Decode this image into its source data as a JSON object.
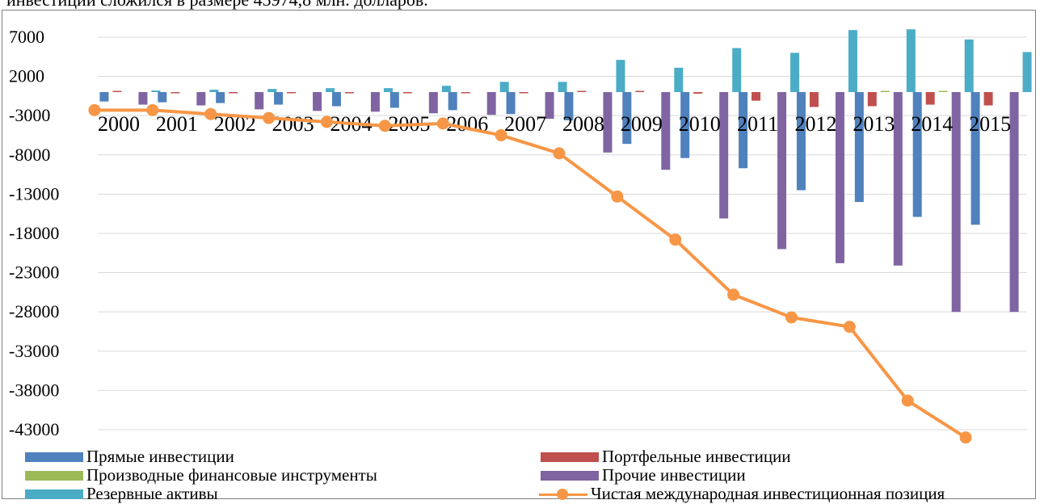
{
  "caption": "инвестиции сложился в размере 43974,8 млн. долларов.",
  "chart_data": {
    "type": "bar",
    "title": "",
    "xlabel": "",
    "ylabel": "",
    "categories": [
      "2000",
      "2001",
      "2002",
      "2003",
      "2004",
      "2005",
      "2006",
      "2007",
      "2008",
      "2009",
      "2010",
      "2011",
      "2012",
      "2013",
      "2014",
      "2015"
    ],
    "ylim": [
      -43000,
      9000
    ],
    "yticks": [
      7000,
      2000,
      -3000,
      -8000,
      -13000,
      -18000,
      -23000,
      -28000,
      -33000,
      -38000,
      -43000
    ],
    "yticklabels": [
      "7000",
      "2000",
      "-3000",
      "-8000",
      "-13000",
      "-18000",
      "-23000",
      "-28000",
      "-33000",
      "-38000",
      "-43000"
    ],
    "grid": true,
    "legend_position": "bottom",
    "series": [
      {
        "name": "Прямые инвестиции",
        "type": "bar",
        "color": "#4f81bd",
        "values": [
          -1200,
          -1300,
          -1400,
          -1600,
          -1800,
          -2000,
          -2300,
          -2800,
          -3600,
          -6600,
          -8400,
          -9700,
          -12500,
          -14000,
          -15900,
          -16900
        ]
      },
      {
        "name": "Портфельные инвестиции",
        "type": "bar",
        "color": "#c0504d",
        "values": [
          100,
          -100,
          -100,
          -100,
          -100,
          -100,
          -100,
          -100,
          100,
          100,
          -200,
          -1100,
          -1900,
          -1800,
          -1600,
          -1700
        ]
      },
      {
        "name": "Производные финансовые инструменты",
        "type": "bar",
        "color": "#9bbb59",
        "values": [
          0,
          0,
          0,
          0,
          0,
          0,
          0,
          0,
          0,
          0,
          0,
          0,
          0,
          100,
          100,
          0
        ]
      },
      {
        "name": "Прочие инвестиции",
        "type": "bar",
        "color": "#8064a2",
        "values": [
          -1600,
          -1700,
          -2200,
          -2400,
          -2500,
          -2700,
          -2900,
          -3400,
          -7700,
          -9900,
          -16100,
          -20000,
          -21800,
          -22100,
          -28000,
          -28000
        ]
      },
      {
        "name": "Резервные активы",
        "type": "bar",
        "color": "#4bacc6",
        "values": [
          200,
          300,
          400,
          500,
          500,
          800,
          1300,
          1300,
          4100,
          3100,
          5600,
          5000,
          7900,
          8000,
          6700,
          5100
        ]
      },
      {
        "name": "Чистая международная инвестиционная позиция",
        "type": "line",
        "color": "#f79646",
        "values": [
          -2300,
          -2300,
          -2800,
          -3300,
          -3800,
          -4300,
          -4000,
          -5500,
          -7800,
          -13300,
          -18800,
          -25800,
          -28700,
          -29900,
          -39300,
          -44000
        ]
      }
    ]
  }
}
